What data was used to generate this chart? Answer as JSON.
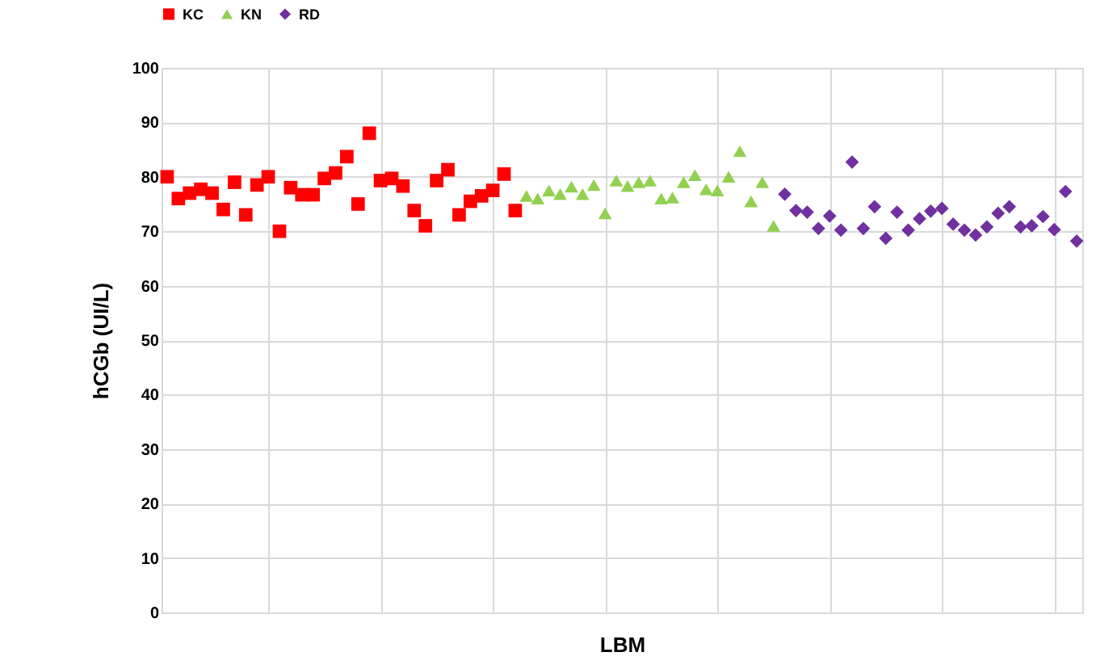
{
  "chart_data": {
    "type": "scatter",
    "xlabel": "LBM",
    "ylabel": "hCGb (UI/L)",
    "ylim": [
      0,
      100
    ],
    "yticks": [
      0,
      10,
      20,
      30,
      40,
      50,
      60,
      70,
      80,
      90,
      100
    ],
    "grid": true,
    "legend": "top",
    "tick_labels": "y",
    "categories": [
      null,
      null,
      null,
      null,
      null,
      null,
      null,
      null,
      null,
      null,
      null,
      null,
      null,
      null,
      null,
      null,
      null,
      null,
      null,
      null,
      null,
      null,
      null,
      null,
      null,
      null,
      null,
      null,
      null,
      null,
      null,
      null,
      null,
      null,
      null,
      null,
      null,
      null,
      null,
      null,
      null,
      null,
      null,
      null,
      null,
      null,
      null,
      null,
      null,
      null,
      null,
      null,
      null,
      null,
      null,
      null,
      null,
      null,
      null,
      null,
      null,
      null,
      null,
      null,
      null,
      null,
      null,
      null,
      null,
      null,
      null,
      null,
      null,
      null,
      null,
      null,
      null,
      null,
      null,
      null,
      null,
      null
    ],
    "series": [
      {
        "name": "KC",
        "color": "#ff0000",
        "marker": "square",
        "values": [
          80,
          76,
          77,
          77.7,
          77,
          74,
          79,
          73,
          78.5,
          80,
          70,
          78,
          76.7,
          76.7,
          79.7,
          80.7,
          83.7,
          75,
          88,
          79.3,
          79.7,
          78.3,
          73.8,
          71,
          79.3,
          81.3,
          73,
          75.5,
          76.5,
          77.5,
          80.5,
          73.8,
          null,
          null,
          null,
          null,
          null,
          null,
          null,
          null,
          null,
          null,
          null,
          null,
          null,
          null,
          null,
          null,
          null,
          null,
          null,
          null,
          null,
          null,
          null,
          null,
          null,
          null,
          null,
          null,
          null,
          null,
          null,
          null,
          null,
          null,
          null,
          null,
          null,
          null,
          null,
          null,
          null,
          null,
          null,
          null,
          null,
          null,
          null,
          null,
          null,
          null
        ]
      },
      {
        "name": "KN",
        "color": "#92d050",
        "marker": "triangle",
        "values": [
          null,
          null,
          null,
          null,
          null,
          null,
          null,
          null,
          null,
          null,
          null,
          null,
          null,
          null,
          null,
          null,
          null,
          null,
          null,
          null,
          null,
          null,
          null,
          null,
          null,
          null,
          null,
          null,
          null,
          null,
          null,
          null,
          76.5,
          76,
          77.5,
          76.8,
          78.2,
          76.8,
          78.5,
          73.3,
          79.3,
          78.3,
          79,
          79.3,
          76,
          76.2,
          79,
          80.3,
          77.7,
          77.5,
          80,
          84.7,
          75.5,
          79,
          71,
          null,
          null,
          null,
          null,
          null,
          null,
          null,
          null,
          null,
          null,
          null,
          null,
          null,
          null,
          null,
          null,
          null,
          null,
          null,
          null,
          null,
          null,
          null,
          null,
          null,
          null,
          null
        ]
      },
      {
        "name": "RD",
        "color": "#7030a0",
        "marker": "diamond",
        "values": [
          null,
          null,
          null,
          null,
          null,
          null,
          null,
          null,
          null,
          null,
          null,
          null,
          null,
          null,
          null,
          null,
          null,
          null,
          null,
          null,
          null,
          null,
          null,
          null,
          null,
          null,
          null,
          null,
          null,
          null,
          null,
          null,
          null,
          null,
          null,
          null,
          null,
          null,
          null,
          null,
          null,
          null,
          null,
          null,
          null,
          null,
          null,
          null,
          null,
          null,
          null,
          null,
          null,
          null,
          null,
          76.8,
          73.8,
          73.5,
          70.5,
          72.8,
          70.2,
          82.7,
          70.5,
          74.5,
          68.7,
          73.5,
          70.2,
          72.3,
          73.7,
          74.2,
          71.3,
          70.2,
          69.3,
          70.8,
          73.3,
          74.5,
          70.8,
          71,
          72.7,
          70.3,
          77.3,
          68.2
        ]
      }
    ]
  }
}
